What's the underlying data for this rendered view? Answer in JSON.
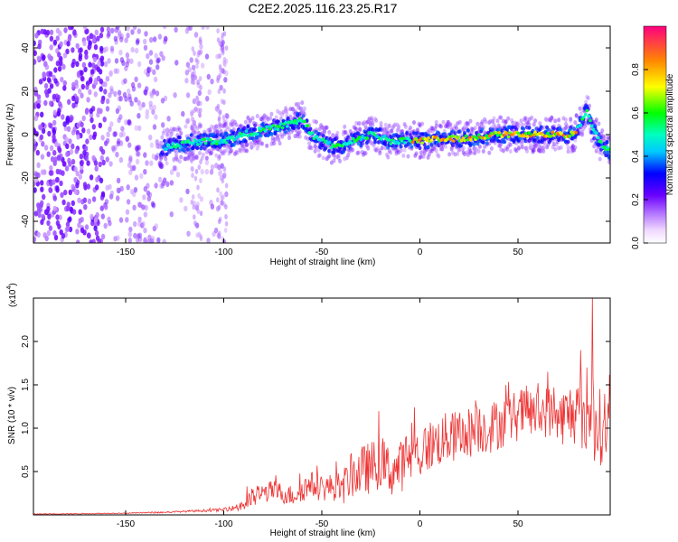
{
  "figure": {
    "title": "C2E2.2025.116.23.25.R17"
  },
  "chart_data": [
    {
      "type": "heatmap",
      "title": "C2E2.2025.116.23.25.R17",
      "xlabel": "Height of straight line (km)",
      "ylabel": "Frequency (Hz)",
      "xlim": [
        -197,
        97
      ],
      "ylim": [
        -50,
        50
      ],
      "xticks": [
        -150,
        -100,
        -50,
        0,
        50
      ],
      "yticks": [
        -40,
        -20,
        0,
        20,
        40
      ],
      "xtick_labels": [
        "-150",
        "-100",
        "-50",
        "0",
        "50"
      ],
      "ytick_labels": [
        "-40",
        "-20",
        "0",
        "20",
        "40"
      ],
      "colorbar": {
        "label": "Normalized spectral amplitude",
        "range": [
          0,
          1
        ],
        "ticks": [
          0.0,
          0.2,
          0.4,
          0.6,
          0.8
        ],
        "tick_labels": [
          "0.0",
          "0.2",
          "0.4",
          "0.6",
          "0.8"
        ],
        "colormap": "rainbow"
      },
      "ridge": {
        "x": [
          -130,
          -120,
          -110,
          -100,
          -90,
          -80,
          -70,
          -60,
          -55,
          -50,
          -45,
          -40,
          -35,
          -30,
          -25,
          -20,
          -15,
          -10,
          -5,
          0,
          10,
          20,
          30,
          40,
          50,
          60,
          70,
          78,
          82,
          85,
          88,
          92,
          97
        ],
        "y": [
          -6,
          -4,
          -3,
          -3,
          0,
          2,
          4,
          7,
          0,
          -3,
          -5,
          -5,
          -3,
          -2,
          0,
          -1,
          -3,
          -3,
          -2,
          -3,
          -2,
          -2,
          -1,
          0,
          0,
          0,
          0,
          0,
          5,
          11,
          3,
          -4,
          -8
        ]
      }
    },
    {
      "type": "line",
      "xlabel": "Height of straight line (km)",
      "ylabel": "SNR (10 * v/v)",
      "y_multiplier_label": "(x10",
      "y_multiplier_exponent": "4",
      "xlim": [
        -197,
        97
      ],
      "ylim": [
        0,
        2.5
      ],
      "xticks": [
        -150,
        -100,
        -50,
        0,
        50
      ],
      "yticks": [
        0.5,
        1.0,
        1.5,
        2.0
      ],
      "xtick_labels": [
        "-150",
        "-100",
        "-50",
        "0",
        "50"
      ],
      "ytick_labels": [
        "0.5",
        "1.0",
        "1.5",
        "2.0"
      ],
      "series": [
        {
          "color": "#ee3333",
          "x": [
            -197,
            -170,
            -150,
            -130,
            -120,
            -110,
            -100,
            -95,
            -90,
            -85,
            -80,
            -75,
            -70,
            -65,
            -60,
            -55,
            -50,
            -45,
            -40,
            -35,
            -30,
            -25,
            -20,
            -15,
            -10,
            -5,
            0,
            5,
            10,
            15,
            20,
            25,
            30,
            35,
            40,
            45,
            50,
            55,
            60,
            65,
            70,
            75,
            80,
            85,
            90,
            95,
            97
          ],
          "y": [
            0.01,
            0.015,
            0.02,
            0.03,
            0.04,
            0.05,
            0.06,
            0.08,
            0.12,
            0.2,
            0.25,
            0.28,
            0.25,
            0.22,
            0.3,
            0.35,
            0.3,
            0.33,
            0.3,
            0.45,
            0.5,
            0.55,
            0.6,
            0.5,
            0.55,
            0.7,
            0.7,
            0.8,
            0.85,
            0.9,
            0.9,
            0.95,
            1.0,
            1.0,
            1.05,
            1.1,
            1.15,
            1.2,
            1.15,
            1.2,
            1.1,
            1.15,
            1.2,
            1.1,
            1.0,
            1.05,
            0.95
          ],
          "noise_amp": [
            0.005,
            0.005,
            0.005,
            0.01,
            0.01,
            0.015,
            0.02,
            0.03,
            0.1,
            0.12,
            0.12,
            0.12,
            0.12,
            0.12,
            0.15,
            0.15,
            0.15,
            0.15,
            0.2,
            0.25,
            0.3,
            0.3,
            0.3,
            0.3,
            0.3,
            0.35,
            0.3,
            0.3,
            0.3,
            0.3,
            0.3,
            0.3,
            0.3,
            0.3,
            0.3,
            0.3,
            0.3,
            0.3,
            0.3,
            0.3,
            0.3,
            0.35,
            0.4,
            0.45,
            0.45,
            0.45,
            0.45
          ],
          "peaks": [
            {
              "x": 88,
              "y": 2.55
            },
            {
              "x": 82,
              "y": 1.9
            },
            {
              "x": 85,
              "y": 1.7
            },
            {
              "x": 65,
              "y": 1.65
            }
          ]
        }
      ]
    }
  ]
}
